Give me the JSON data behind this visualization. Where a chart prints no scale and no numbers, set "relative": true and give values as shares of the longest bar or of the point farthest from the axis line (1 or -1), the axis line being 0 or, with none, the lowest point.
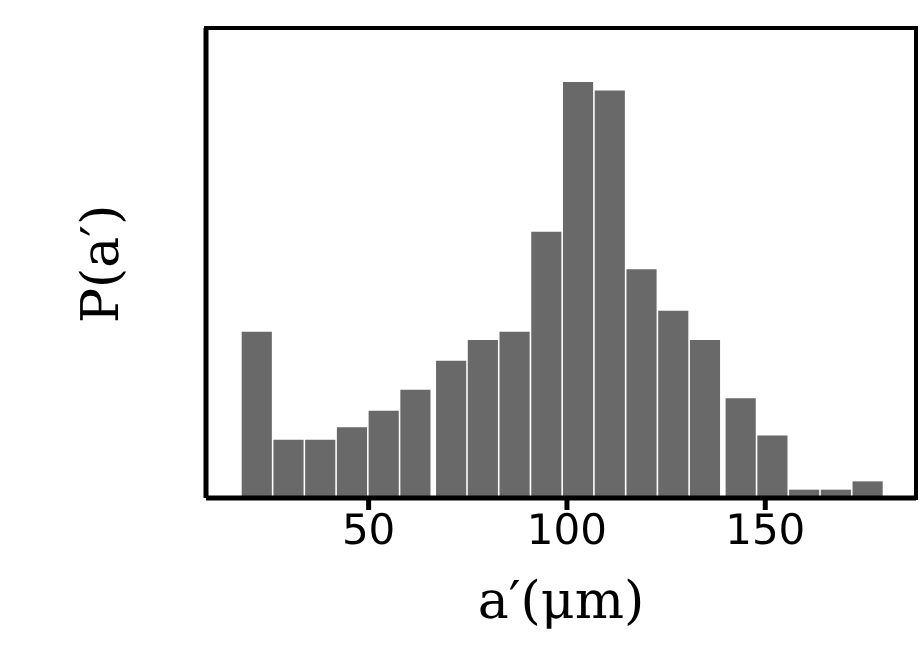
{
  "chart_data": {
    "type": "bar",
    "xlabel": "a′(μm)",
    "ylabel": "P(a′)",
    "relative": true,
    "color": "#696969",
    "x": [
      22,
      30,
      38,
      46,
      54,
      62,
      71,
      79,
      87,
      95,
      103,
      111,
      119,
      127,
      135,
      144,
      152,
      160,
      168,
      176
    ],
    "values": [
      0.4,
      0.14,
      0.14,
      0.17,
      0.21,
      0.26,
      0.33,
      0.38,
      0.4,
      0.64,
      1,
      0.98,
      0.55,
      0.45,
      0.38,
      0.24,
      0.15,
      0.02,
      0.02,
      0.04
    ],
    "xlim": [
      9,
      188
    ],
    "xticks": [
      50,
      100,
      150
    ],
    "grid": false
  }
}
